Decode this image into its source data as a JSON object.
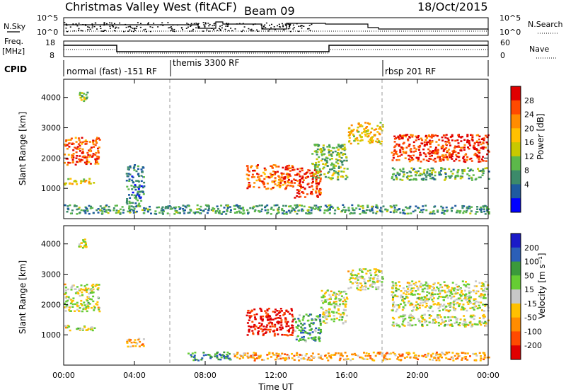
{
  "header": {
    "station": "Christmas Valley West (fitACF)",
    "beam": "Beam 09",
    "date": "18/Oct/2015"
  },
  "status_panel": {
    "nsky_label": "N.Sky",
    "nsky_ticks": [
      "10^5",
      "10^0"
    ],
    "nsearch_label": "N.Search",
    "nsearch_ticks": [
      "10^5",
      "10^0"
    ],
    "freq_label": "Freq.",
    "freq_unit": "[MHz]",
    "freq_ticks": [
      "18",
      "8"
    ],
    "nave_label": "Nave",
    "nave_ticks": [
      "60",
      "0"
    ],
    "cpid_label": "CPID",
    "cpid_segments": [
      "normal (fast) -151 RF",
      "themis 3300 RF",
      "rbsp 201 RF"
    ]
  },
  "chart_data": [
    {
      "type": "heatmap",
      "title": "Power",
      "xlabel": "",
      "ylabel": "Slant Range [km]",
      "x_range_hours": [
        0,
        24
      ],
      "x_ticks": [
        "00:00",
        "04:00",
        "08:00",
        "12:00",
        "16:00",
        "20:00",
        "00:00"
      ],
      "ylim": [
        0,
        4600
      ],
      "y_ticks": [
        1000,
        2000,
        3000,
        4000
      ],
      "colorbar": {
        "label": "Power [dB]",
        "ticks": [
          "28",
          "24",
          "20",
          "16",
          "12",
          "8",
          "4"
        ],
        "colors": [
          "#e00000",
          "#ff4a00",
          "#ff8c00",
          "#ffc000",
          "#c8c800",
          "#5cb84a",
          "#3c8a6a",
          "#1e5aa0",
          "#0000ff"
        ]
      },
      "regions": [
        {
          "t": [
            0.0,
            2.0
          ],
          "range": [
            1800,
            2700
          ],
          "level": 0.82
        },
        {
          "t": [
            0.0,
            1.7
          ],
          "range": [
            1150,
            1350
          ],
          "level": 0.55
        },
        {
          "t": [
            0.8,
            1.3
          ],
          "range": [
            3900,
            4200
          ],
          "level": 0.45
        },
        {
          "t": [
            3.5,
            4.5
          ],
          "range": [
            500,
            1800
          ],
          "level": 0.25
        },
        {
          "t": [
            10.3,
            13.0
          ],
          "range": [
            1000,
            1800
          ],
          "level": 0.8
        },
        {
          "t": [
            13.0,
            14.5
          ],
          "range": [
            700,
            1700
          ],
          "level": 0.88
        },
        {
          "t": [
            14.0,
            16.0
          ],
          "range": [
            1300,
            2500
          ],
          "level": 0.4
        },
        {
          "t": [
            16.0,
            18.0
          ],
          "range": [
            2500,
            3200
          ],
          "level": 0.6
        },
        {
          "t": [
            18.5,
            24.0
          ],
          "range": [
            1900,
            2800
          ],
          "level": 0.88
        },
        {
          "t": [
            18.5,
            24.0
          ],
          "range": [
            1300,
            1700
          ],
          "level": 0.35
        },
        {
          "t": [
            0.0,
            24.0
          ],
          "range": [
            180,
            480
          ],
          "level": 0.3
        }
      ]
    },
    {
      "type": "heatmap",
      "title": "Velocity",
      "xlabel": "Time UT",
      "ylabel": "Slant Range [km]",
      "x_range_hours": [
        0,
        24
      ],
      "x_ticks": [
        "00:00",
        "04:00",
        "08:00",
        "12:00",
        "16:00",
        "20:00",
        "00:00"
      ],
      "ylim": [
        0,
        4600
      ],
      "y_ticks": [
        1000,
        2000,
        3000,
        4000
      ],
      "colorbar": {
        "label": "Velocity [m s⁻¹]",
        "ticks": [
          "200",
          "100",
          "50",
          "15",
          "-15",
          "-50",
          "-100",
          "-200"
        ],
        "colors": [
          "#1a1ac8",
          "#2b5fb8",
          "#3b9a3b",
          "#66cc33",
          "#c8c8c8",
          "#ffc000",
          "#ff8c00",
          "#ff4a00",
          "#e00000"
        ]
      },
      "regions": [
        {
          "t": [
            0.0,
            2.0
          ],
          "range": [
            1800,
            2700
          ],
          "level": 0.5
        },
        {
          "t": [
            0.0,
            1.7
          ],
          "range": [
            1150,
            1350
          ],
          "level": 0.5
        },
        {
          "t": [
            0.8,
            1.3
          ],
          "range": [
            3900,
            4200
          ],
          "level": 0.5
        },
        {
          "t": [
            3.5,
            4.5
          ],
          "range": [
            600,
            900
          ],
          "level": 0.35
        },
        {
          "t": [
            10.3,
            13.0
          ],
          "range": [
            1000,
            1900
          ],
          "level": 0.05
        },
        {
          "t": [
            13.0,
            14.5
          ],
          "range": [
            800,
            1700
          ],
          "level": 0.7
        },
        {
          "t": [
            14.5,
            16.0
          ],
          "range": [
            1400,
            2500
          ],
          "level": 0.5
        },
        {
          "t": [
            16.0,
            18.0
          ],
          "range": [
            2500,
            3200
          ],
          "level": 0.5
        },
        {
          "t": [
            18.5,
            24.0
          ],
          "range": [
            1800,
            2800
          ],
          "level": 0.5
        },
        {
          "t": [
            18.5,
            24.0
          ],
          "range": [
            1300,
            1700
          ],
          "level": 0.5
        },
        {
          "t": [
            7.0,
            9.5
          ],
          "range": [
            180,
            450
          ],
          "level": 0.75
        },
        {
          "t": [
            9.5,
            24.0
          ],
          "range": [
            180,
            450
          ],
          "level": 0.35
        }
      ]
    }
  ]
}
